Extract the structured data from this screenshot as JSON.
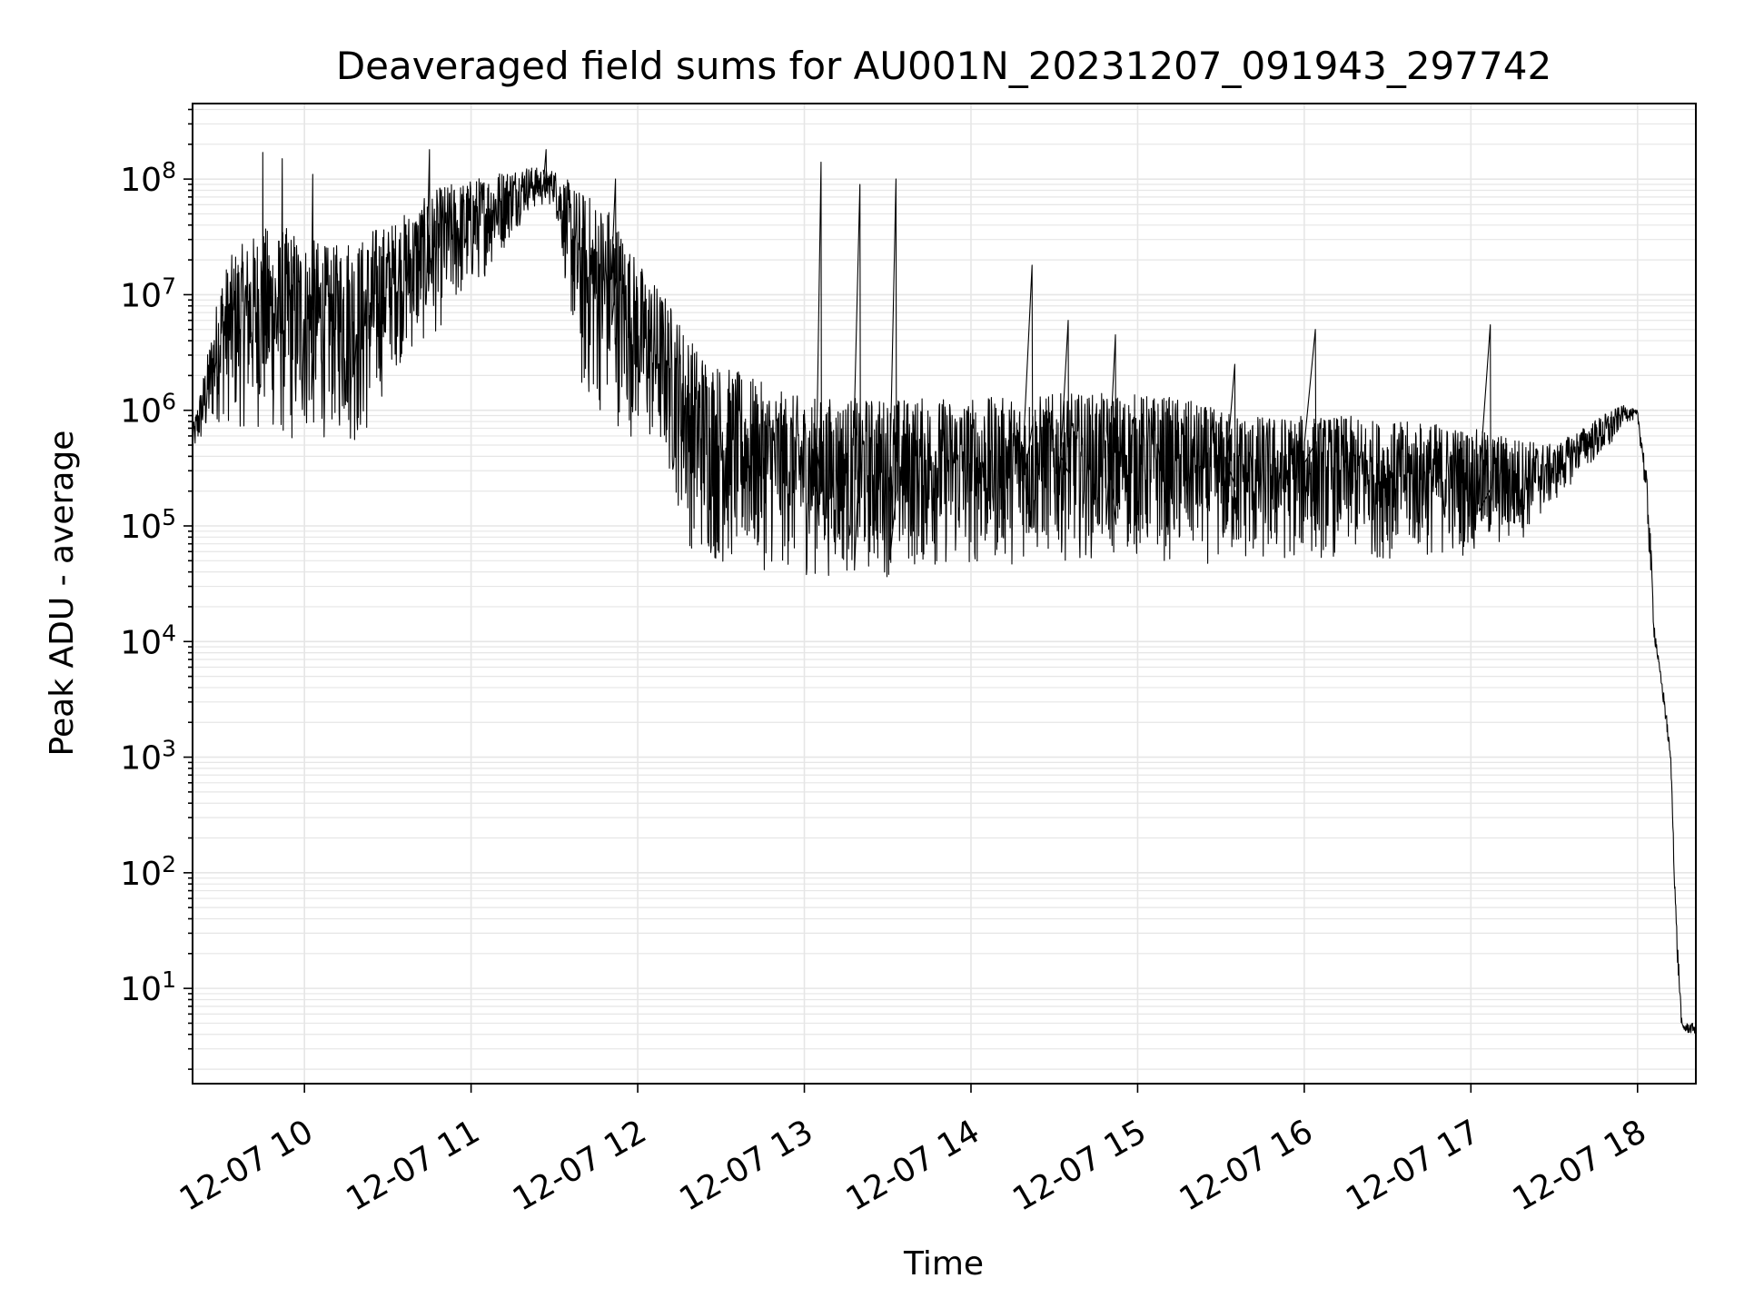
{
  "chart_data": {
    "type": "line",
    "title": "Deaveraged field sums for AU001N_20231207_091943_297742",
    "xlabel": "Time",
    "ylabel": "Peak ADU - average",
    "y_scale": "log",
    "ylim": [
      1.5,
      450000000
    ],
    "xlim": [
      "2023-12-07 09:19:43",
      "2023-12-07 18:21:00"
    ],
    "grid": "major and minor",
    "line_color": "#000000",
    "x_ticks": [
      {
        "label": "12-07 10",
        "value": "2023-12-07 10:00"
      },
      {
        "label": "12-07 11",
        "value": "2023-12-07 11:00"
      },
      {
        "label": "12-07 12",
        "value": "2023-12-07 12:00"
      },
      {
        "label": "12-07 13",
        "value": "2023-12-07 13:00"
      },
      {
        "label": "12-07 14",
        "value": "2023-12-07 14:00"
      },
      {
        "label": "12-07 15",
        "value": "2023-12-07 15:00"
      },
      {
        "label": "12-07 16",
        "value": "2023-12-07 16:00"
      },
      {
        "label": "12-07 17",
        "value": "2023-12-07 17:00"
      },
      {
        "label": "12-07 18",
        "value": "2023-12-07 18:00"
      }
    ],
    "y_ticks": [
      {
        "base": "10",
        "exp": "1",
        "value": 10
      },
      {
        "base": "10",
        "exp": "2",
        "value": 100
      },
      {
        "base": "10",
        "exp": "3",
        "value": 1000
      },
      {
        "base": "10",
        "exp": "4",
        "value": 10000
      },
      {
        "base": "10",
        "exp": "5",
        "value": 100000
      },
      {
        "base": "10",
        "exp": "6",
        "value": 1000000
      },
      {
        "base": "10",
        "exp": "7",
        "value": 10000000
      },
      {
        "base": "10",
        "exp": "8",
        "value": 100000000
      }
    ],
    "series": [
      {
        "x": [
          "2023-12-07 09:19:43",
          "2023-12-07 09:25",
          "2023-12-07 09:30",
          "2023-12-07 09:35",
          "2023-12-07 09:40",
          "2023-12-07 09:45",
          "2023-12-07 09:50",
          "2023-12-07 09:55",
          "2023-12-07 10:00",
          "2023-12-07 10:05",
          "2023-12-07 10:10",
          "2023-12-07 10:15",
          "2023-12-07 10:20",
          "2023-12-07 10:25",
          "2023-12-07 10:30",
          "2023-12-07 10:40",
          "2023-12-07 10:50",
          "2023-12-07 11:00",
          "2023-12-07 11:10",
          "2023-12-07 11:20",
          "2023-12-07 11:30",
          "2023-12-07 11:40",
          "2023-12-07 11:50",
          "2023-12-07 12:00",
          "2023-12-07 12:10",
          "2023-12-07 12:20",
          "2023-12-07 12:30",
          "2023-12-07 12:40",
          "2023-12-07 12:50",
          "2023-12-07 13:00",
          "2023-12-07 13:15",
          "2023-12-07 13:30",
          "2023-12-07 13:45",
          "2023-12-07 14:00",
          "2023-12-07 14:15",
          "2023-12-07 14:30",
          "2023-12-07 14:45",
          "2023-12-07 15:00",
          "2023-12-07 15:15",
          "2023-12-07 15:30",
          "2023-12-07 15:45",
          "2023-12-07 16:00",
          "2023-12-07 16:15",
          "2023-12-07 16:30",
          "2023-12-07 16:45",
          "2023-12-07 17:00",
          "2023-12-07 17:15",
          "2023-12-07 17:30",
          "2023-12-07 17:40",
          "2023-12-07 17:50",
          "2023-12-07 17:55",
          "2023-12-07 18:00",
          "2023-12-07 18:02",
          "2023-12-07 18:04",
          "2023-12-07 18:06",
          "2023-12-07 18:08",
          "2023-12-07 18:10",
          "2023-12-07 18:12",
          "2023-12-07 18:14",
          "2023-12-07 18:16",
          "2023-12-07 18:18",
          "2023-12-07 18:21"
        ],
        "y_low": [
          400000,
          500000,
          800000,
          600000,
          700000,
          600000,
          500000,
          400000,
          500000,
          500000,
          600000,
          500000,
          400000,
          600000,
          2000000,
          3000000,
          5000000,
          10000000,
          20000000,
          50000000,
          60000000,
          1000000,
          800000,
          500000,
          300000,
          50000,
          40000,
          40000,
          40000,
          35000,
          35000,
          35000,
          40000,
          40000,
          45000,
          50000,
          50000,
          50000,
          45000,
          45000,
          40000,
          50000,
          50000,
          50000,
          50000,
          55000,
          60000,
          150000,
          300000,
          400000,
          800000,
          800000,
          300000,
          60000,
          10000,
          5000,
          2000,
          800,
          20,
          4,
          4,
          4
        ],
        "y_high": [
          700000,
          3000000,
          15000000,
          25000000,
          30000000,
          40000000,
          35000000,
          40000000,
          30000000,
          30000000,
          25000000,
          35000000,
          30000000,
          40000000,
          40000000,
          60000000,
          90000000,
          100000000,
          120000000,
          130000000,
          120000000,
          80000000,
          60000000,
          20000000,
          10000000,
          4000000,
          2500000,
          2000000,
          1500000,
          1300000,
          1300000,
          1300000,
          1300000,
          1300000,
          1300000,
          1400000,
          1400000,
          1400000,
          1300000,
          1000000,
          900000,
          900000,
          900000,
          800000,
          800000,
          700000,
          600000,
          500000,
          700000,
          1000000,
          1100000,
          1000000,
          500000,
          200000,
          15000,
          6000,
          3000,
          1000,
          40,
          5,
          5,
          5
        ],
        "spikes": [
          [
            "2023-12-07 09:45",
            170000000
          ],
          [
            "2023-12-07 09:52",
            150000000
          ],
          [
            "2023-12-07 10:03",
            110000000
          ],
          [
            "2023-12-07 10:45",
            180000000
          ],
          [
            "2023-12-07 11:27",
            180000000
          ],
          [
            "2023-12-07 11:52",
            100000000
          ],
          [
            "2023-12-07 13:06",
            140000000
          ],
          [
            "2023-12-07 13:20",
            90000000
          ],
          [
            "2023-12-07 13:33",
            100000000
          ],
          [
            "2023-12-07 14:22",
            18000000
          ],
          [
            "2023-12-07 14:35",
            6000000
          ],
          [
            "2023-12-07 14:52",
            4500000
          ],
          [
            "2023-12-07 15:35",
            2500000
          ],
          [
            "2023-12-07 16:04",
            5000000
          ],
          [
            "2023-12-07 17:07",
            5500000
          ]
        ]
      }
    ]
  }
}
